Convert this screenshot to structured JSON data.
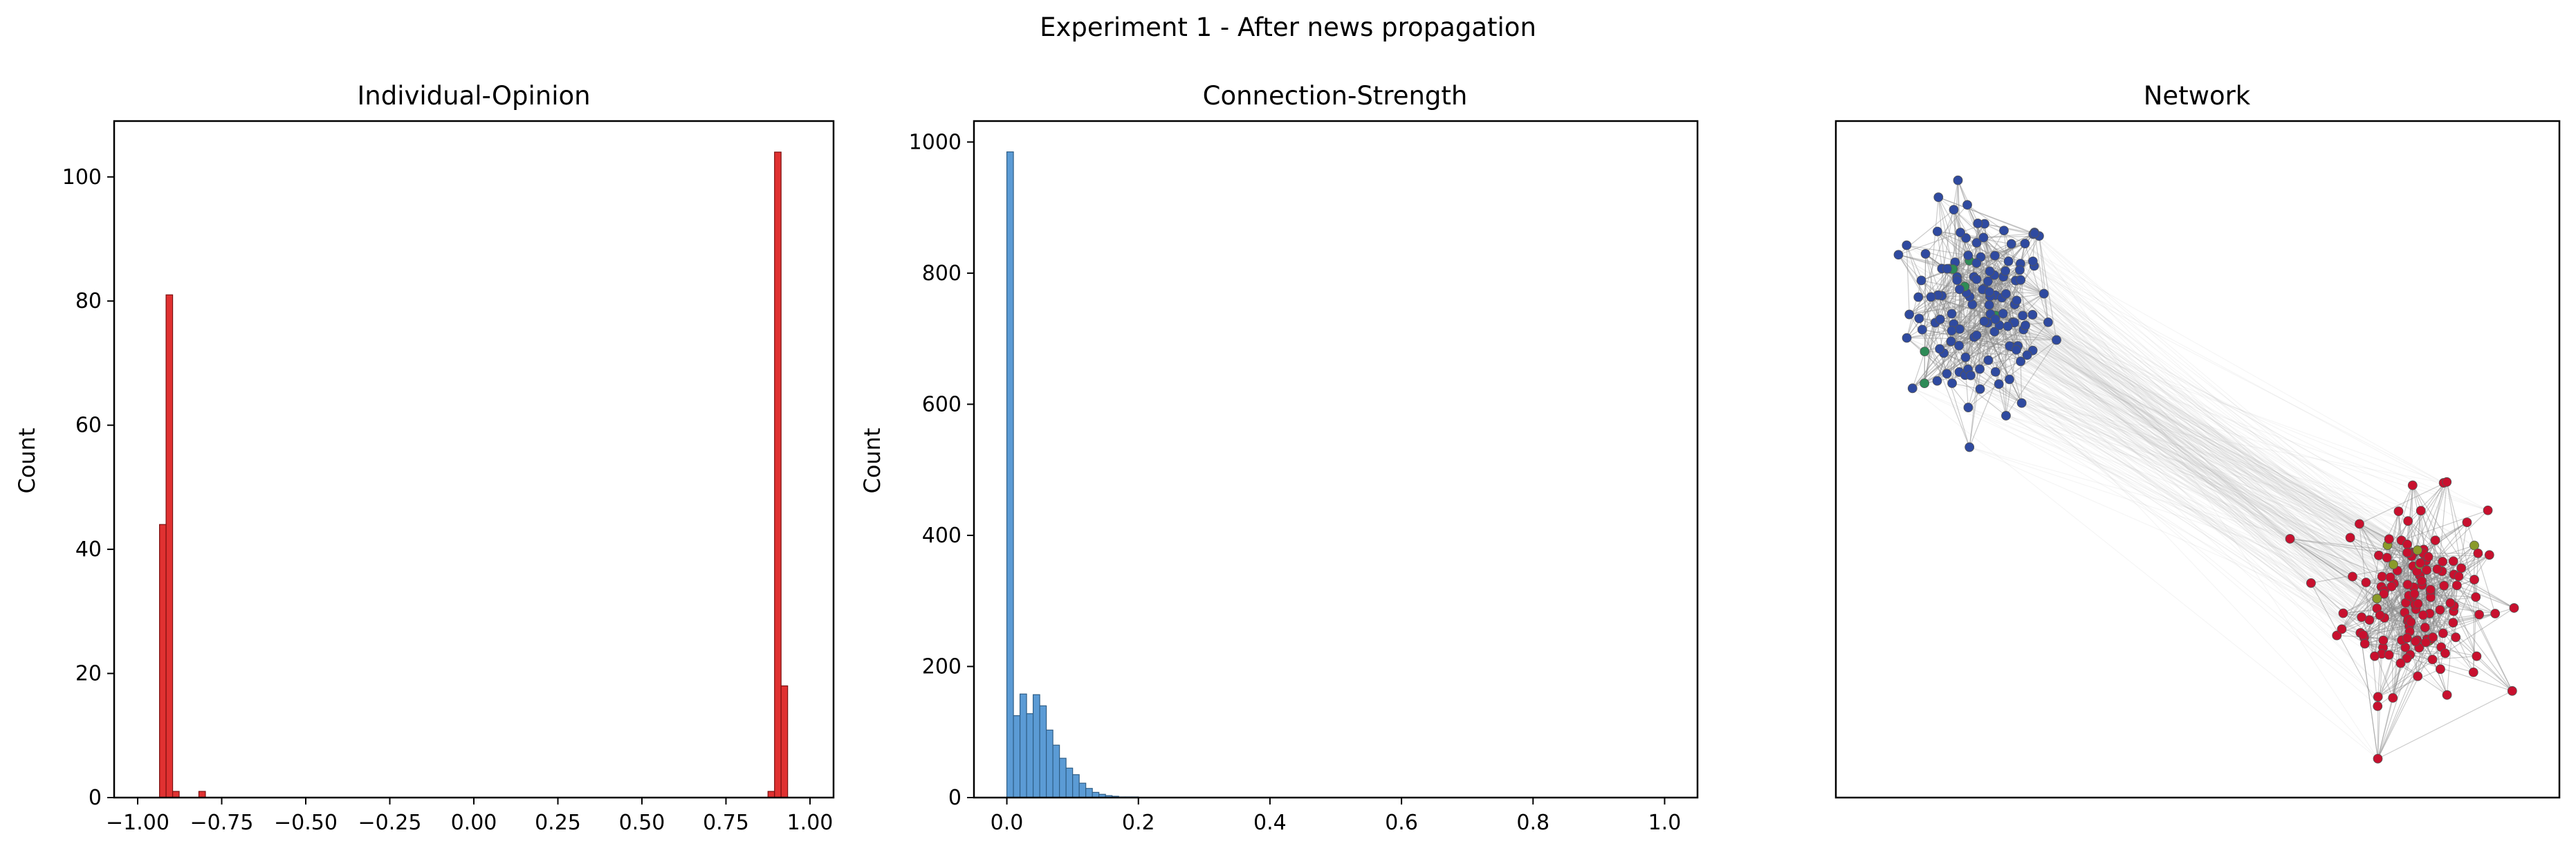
{
  "suptitle": "Experiment 1 - After news propagation",
  "chart_data": [
    {
      "type": "bar",
      "title": "Individual-Opinion",
      "xlabel": "",
      "ylabel": "Count",
      "xlim": [
        -1.07,
        1.07
      ],
      "ylim": [
        0,
        109
      ],
      "xticks": [
        -1.0,
        -0.75,
        -0.5,
        -0.25,
        0.0,
        0.25,
        0.5,
        0.75,
        1.0
      ],
      "xtick_labels": [
        "−1.00",
        "−0.75",
        "−0.50",
        "−0.25",
        "0.00",
        "0.25",
        "0.50",
        "0.75",
        "1.00"
      ],
      "yticks": [
        0,
        20,
        40,
        60,
        80,
        100
      ],
      "ytick_labels": [
        "0",
        "20",
        "40",
        "60",
        "80",
        "100"
      ],
      "bin_width": 0.0195,
      "color": "#e03131",
      "edge_color": "#7a1010",
      "bins": [
        {
          "x0": -0.935,
          "count": 44
        },
        {
          "x0": -0.9155,
          "count": 81
        },
        {
          "x0": -0.896,
          "count": 1
        },
        {
          "x0": -0.818,
          "count": 1
        },
        {
          "x0": 0.875,
          "count": 1
        },
        {
          "x0": 0.8945,
          "count": 104
        },
        {
          "x0": 0.914,
          "count": 18
        }
      ]
    },
    {
      "type": "bar",
      "title": "Connection-Strength",
      "xlabel": "",
      "ylabel": "Count",
      "xlim": [
        -0.05,
        1.05
      ],
      "ylim": [
        0,
        1032
      ],
      "xticks": [
        0.0,
        0.2,
        0.4,
        0.6,
        0.8,
        1.0
      ],
      "xtick_labels": [
        "0.0",
        "0.2",
        "0.4",
        "0.6",
        "0.8",
        "1.0"
      ],
      "yticks": [
        0,
        200,
        400,
        600,
        800,
        1000
      ],
      "ytick_labels": [
        "0",
        "200",
        "400",
        "600",
        "800",
        "1000"
      ],
      "bin_width": 0.01,
      "color": "#5b9bd5",
      "edge_color": "#2f5d85",
      "bins": [
        {
          "x0": 0.0,
          "count": 985
        },
        {
          "x0": 0.01,
          "count": 125
        },
        {
          "x0": 0.02,
          "count": 158
        },
        {
          "x0": 0.03,
          "count": 128
        },
        {
          "x0": 0.04,
          "count": 157
        },
        {
          "x0": 0.05,
          "count": 140
        },
        {
          "x0": 0.06,
          "count": 103
        },
        {
          "x0": 0.07,
          "count": 80
        },
        {
          "x0": 0.08,
          "count": 60
        },
        {
          "x0": 0.09,
          "count": 45
        },
        {
          "x0": 0.1,
          "count": 35
        },
        {
          "x0": 0.11,
          "count": 22
        },
        {
          "x0": 0.12,
          "count": 14
        },
        {
          "x0": 0.13,
          "count": 8
        },
        {
          "x0": 0.14,
          "count": 5
        },
        {
          "x0": 0.15,
          "count": 3
        },
        {
          "x0": 0.16,
          "count": 2
        },
        {
          "x0": 0.17,
          "count": 1
        },
        {
          "x0": 0.18,
          "count": 1
        },
        {
          "x0": 0.19,
          "count": 1
        }
      ]
    },
    {
      "type": "scatter",
      "title": "Network",
      "xlabel": "",
      "ylabel": "",
      "grid": false,
      "axes_ticks": false,
      "clusters": [
        {
          "center": [
            0.2,
            0.72
          ],
          "spread": [
            0.09,
            0.14
          ],
          "count": 130,
          "color": "#2f4aa0",
          "accent": "#2e8b57"
        },
        {
          "center": [
            0.8,
            0.3
          ],
          "spread": [
            0.09,
            0.13
          ],
          "count": 140,
          "color": "#c8102e",
          "accent": "#8a9a2a"
        }
      ],
      "edge_color": "#b0b0b0"
    }
  ]
}
